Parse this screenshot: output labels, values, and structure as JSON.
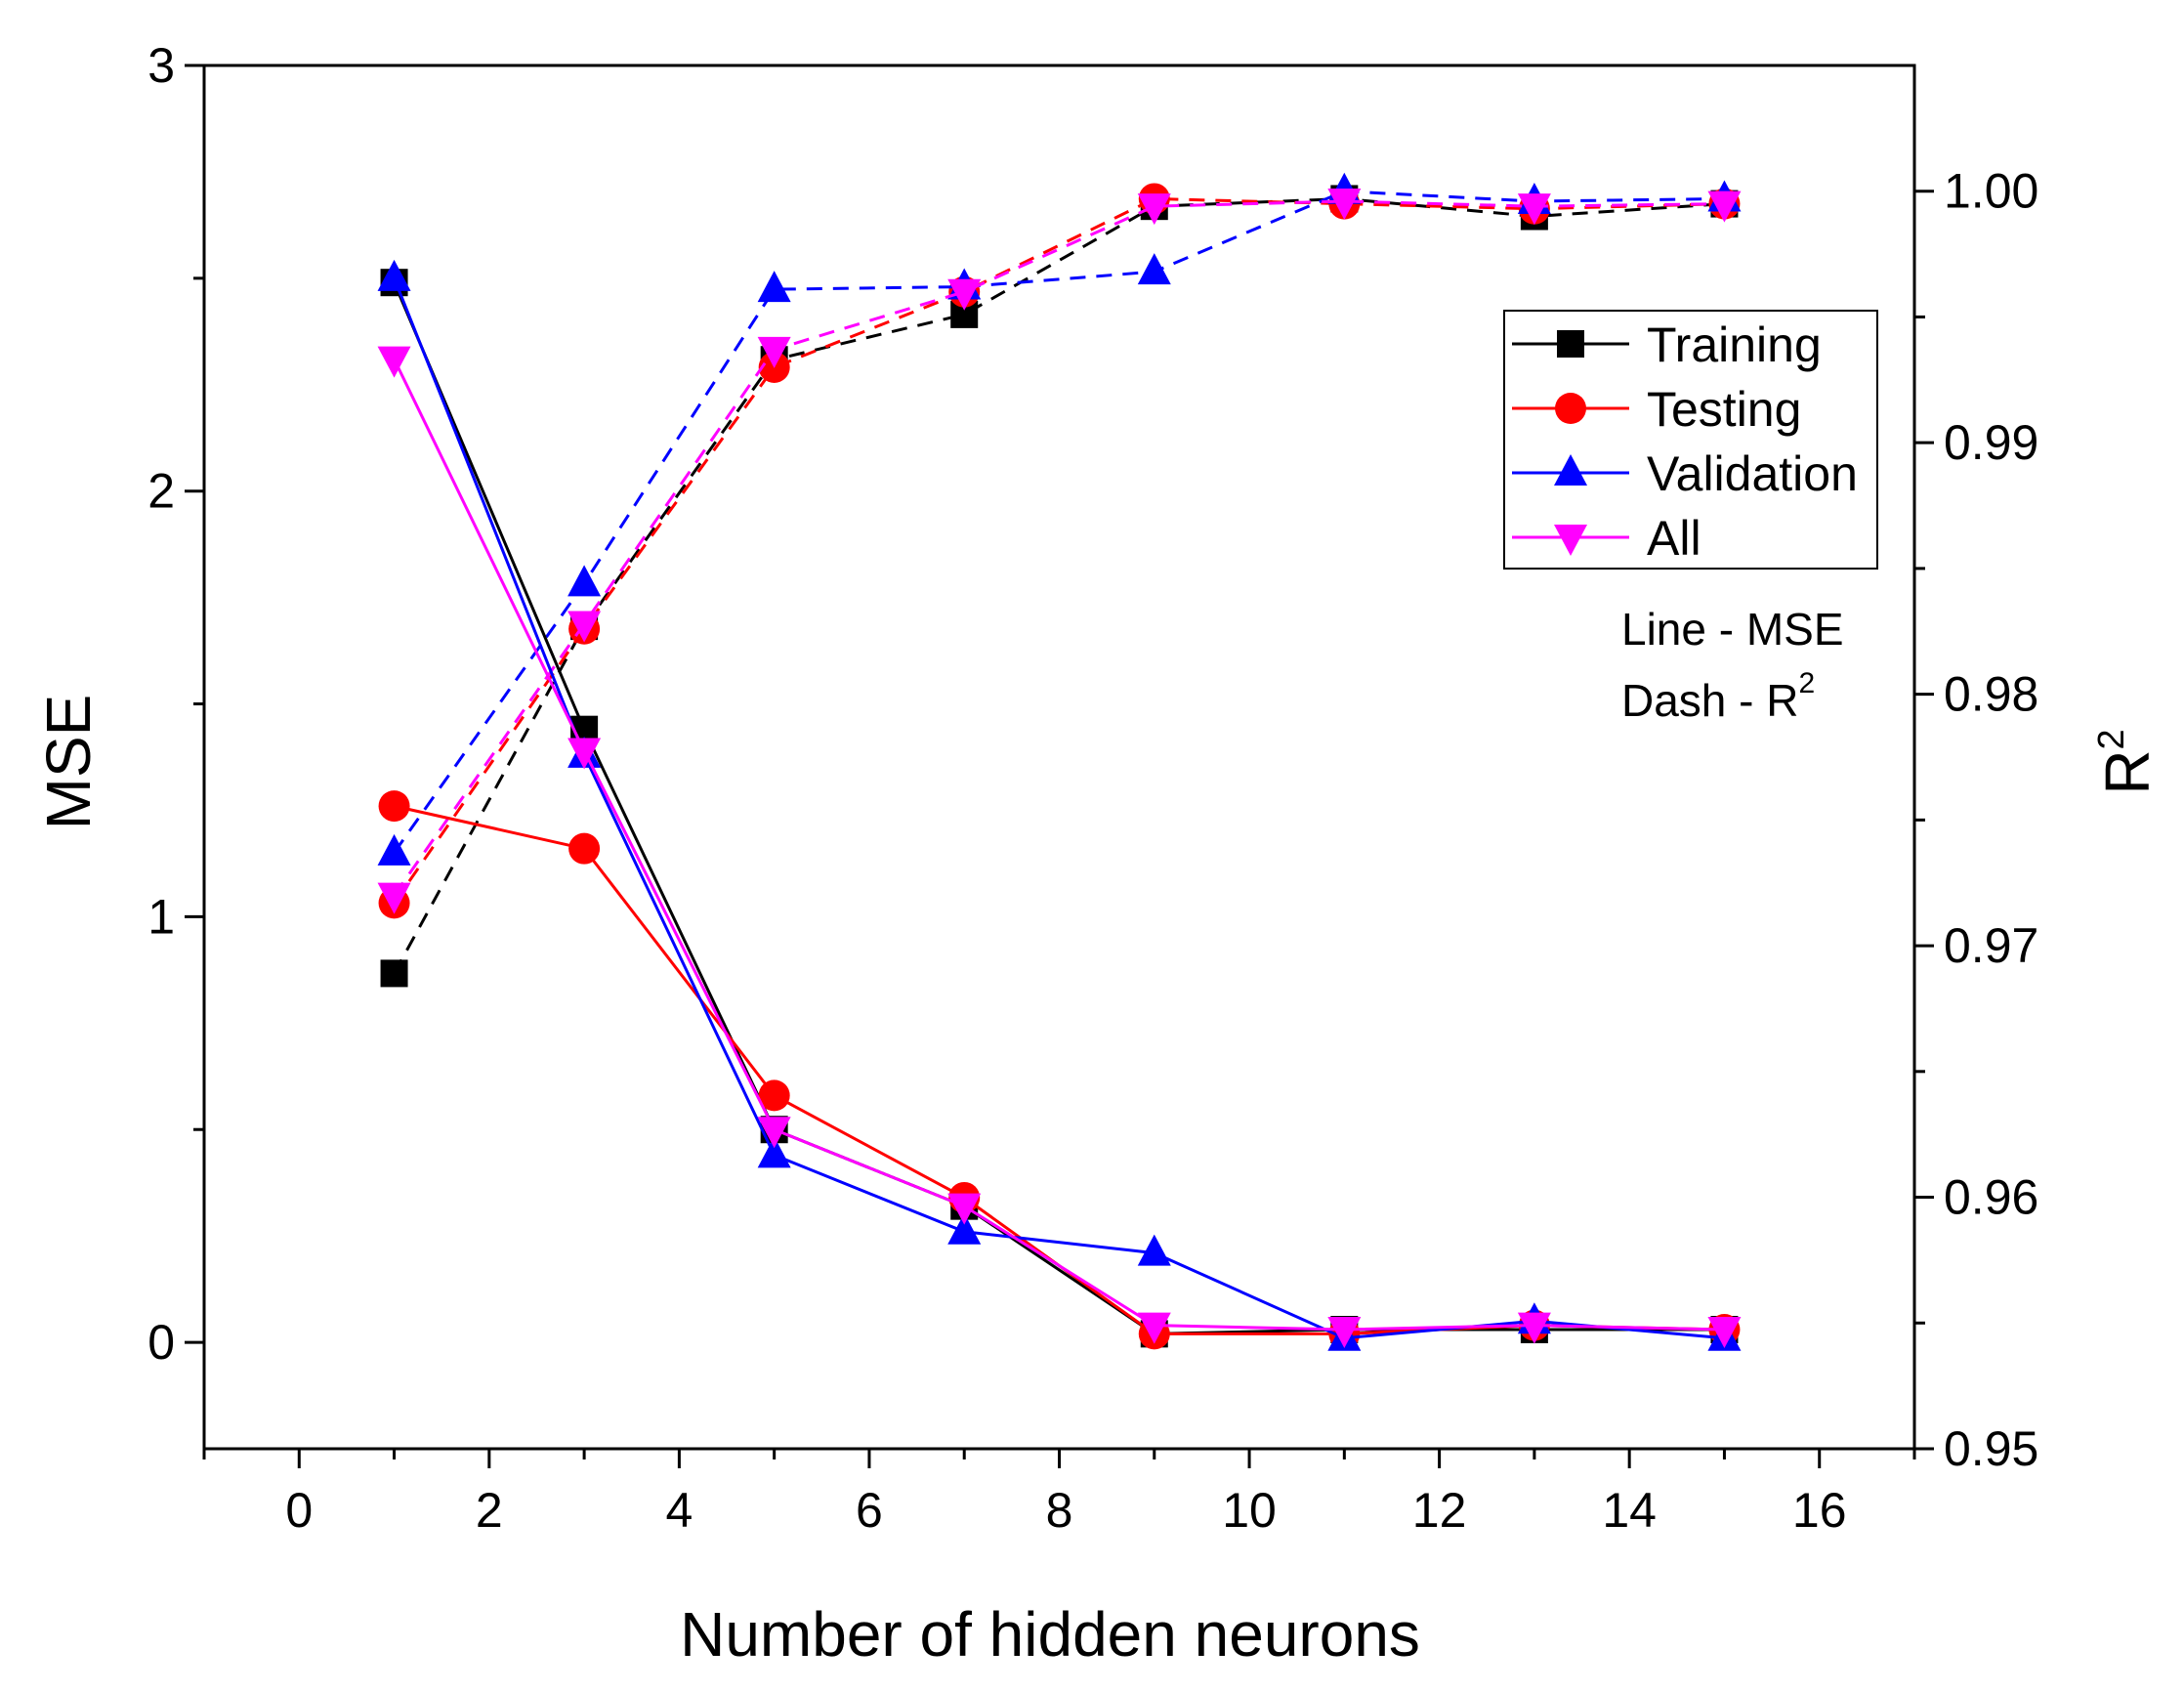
{
  "chart_data": {
    "type": "line",
    "xlabel": "Number of hidden neurons",
    "ylabel": "MSE",
    "y2label": "R",
    "y2label_sup": "2",
    "xlim": [
      -1,
      17
    ],
    "ylim": [
      -0.25,
      3
    ],
    "y2lim": [
      0.95,
      1.005
    ],
    "x_ticks": [
      0,
      2,
      4,
      6,
      8,
      10,
      12,
      14,
      16
    ],
    "y_ticks": [
      0,
      1,
      2,
      3
    ],
    "y_minor_ticks": [
      0.5,
      1.5,
      2.5
    ],
    "y2_ticks": [
      "0.95",
      "0.96",
      "0.97",
      "0.98",
      "0.99",
      "1.00"
    ],
    "x": [
      1,
      3,
      5,
      7,
      9,
      11,
      13,
      15
    ],
    "mse_series": [
      {
        "name": "Training",
        "color": "#000000",
        "marker": "square",
        "values": [
          2.49,
          1.44,
          0.5,
          0.32,
          0.02,
          0.03,
          0.03,
          0.03
        ]
      },
      {
        "name": "Testing",
        "color": "#ff0000",
        "marker": "circle",
        "values": [
          1.26,
          1.16,
          0.58,
          0.34,
          0.02,
          0.02,
          0.04,
          0.03
        ]
      },
      {
        "name": "Validation",
        "color": "#0000ff",
        "marker": "triangle-up",
        "values": [
          2.5,
          1.38,
          0.44,
          0.26,
          0.21,
          0.01,
          0.05,
          0.01
        ]
      },
      {
        "name": "All",
        "color": "#ff00ff",
        "marker": "triangle-down",
        "values": [
          2.31,
          1.39,
          0.5,
          0.32,
          0.04,
          0.03,
          0.04,
          0.03
        ]
      }
    ],
    "r2_series": [
      {
        "name": "Training",
        "color": "#000000",
        "marker": "square",
        "values": [
          0.9689,
          0.9827,
          0.9933,
          0.9951,
          0.9994,
          0.9997,
          0.999,
          0.9995
        ]
      },
      {
        "name": "Testing",
        "color": "#ff0000",
        "marker": "circle",
        "values": [
          0.9717,
          0.9826,
          0.993,
          0.996,
          0.9997,
          0.9995,
          0.9993,
          0.9995
        ]
      },
      {
        "name": "Validation",
        "color": "#0000ff",
        "marker": "triangle-up",
        "values": [
          0.9737,
          0.9844,
          0.9961,
          0.9962,
          0.9968,
          1.0,
          0.9996,
          0.9997
        ]
      },
      {
        "name": "All",
        "color": "#ff00ff",
        "marker": "triangle-down",
        "values": [
          0.972,
          0.9828,
          0.9937,
          0.996,
          0.9994,
          0.9996,
          0.9994,
          0.9995
        ]
      }
    ],
    "legend": {
      "position": "upper-right",
      "entries": [
        "Training",
        "Testing",
        "Validation",
        "All"
      ]
    },
    "annotations": {
      "line_note": "Line - MSE",
      "dash_note": "Dash - R",
      "dash_note_sup": "2"
    }
  }
}
